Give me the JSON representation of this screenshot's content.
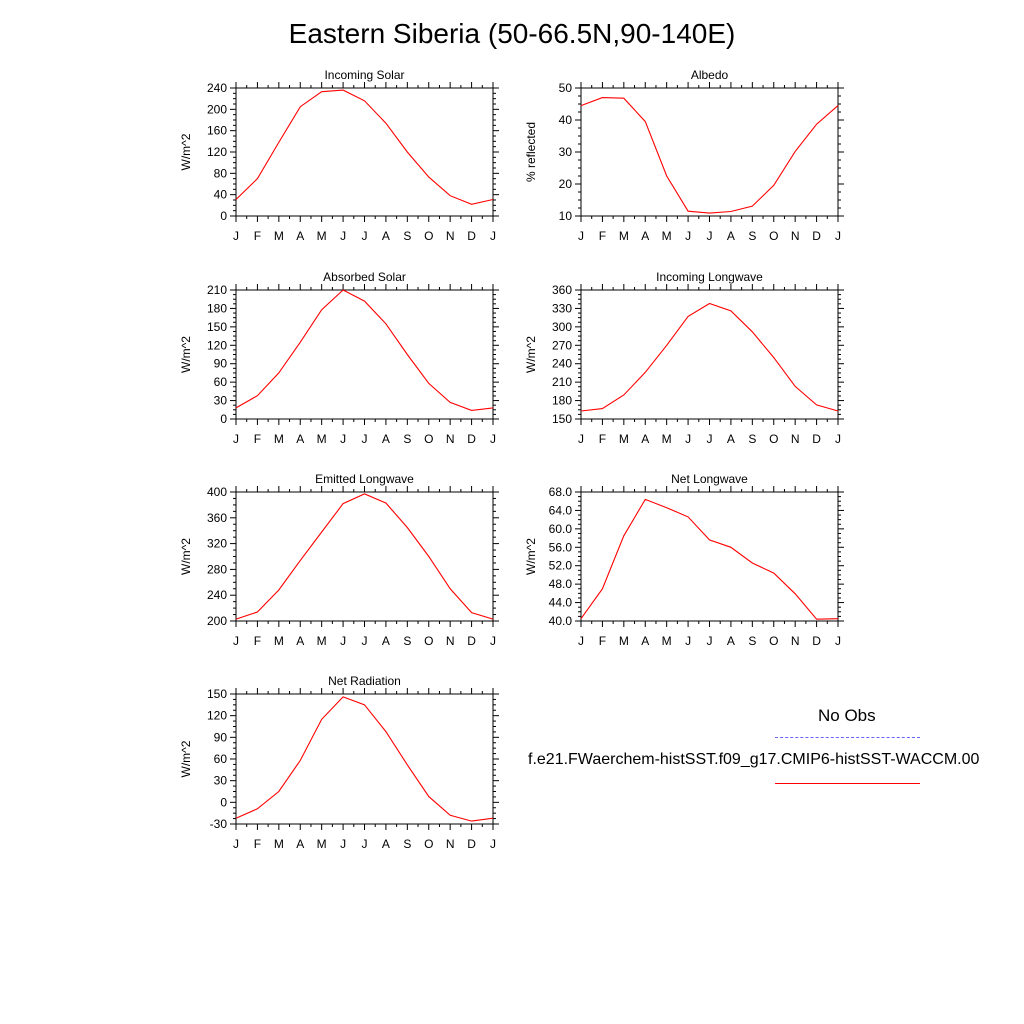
{
  "title": "Eastern Siberia (50-66.5N,90-140E)",
  "colors": {
    "model": "#ff0000",
    "obs": "#6666ff",
    "axes": "#000000"
  },
  "legend": {
    "obs_label": "No Obs",
    "case_label": "f.e21.FWaerchem-histSST.f09_g17.CMIP6-histSST-WACCM.00"
  },
  "chart_data": [
    {
      "id": "incoming-solar",
      "type": "line",
      "title": "Incoming Solar",
      "ylabel": "W/m^2",
      "categories": [
        "J",
        "F",
        "M",
        "A",
        "M",
        "J",
        "J",
        "A",
        "S",
        "O",
        "N",
        "D",
        "J"
      ],
      "ylim": [
        0,
        240
      ],
      "yticks": [
        "0",
        "40",
        "80",
        "120",
        "160",
        "200",
        "240"
      ],
      "series": [
        {
          "values": [
            31,
            70,
            138,
            205,
            233,
            236,
            216,
            174,
            120,
            73,
            38,
            22,
            31
          ]
        }
      ]
    },
    {
      "id": "albedo",
      "type": "line",
      "title": "Albedo",
      "ylabel": "% reflected",
      "categories": [
        "J",
        "F",
        "M",
        "A",
        "M",
        "J",
        "J",
        "A",
        "S",
        "O",
        "N",
        "D",
        "J"
      ],
      "ylim": [
        10,
        50
      ],
      "yticks": [
        "10",
        "20",
        "30",
        "40",
        "50"
      ],
      "series": [
        {
          "values": [
            44.5,
            47.0,
            46.8,
            39.5,
            22.5,
            11.5,
            10.9,
            11.4,
            13.1,
            19.6,
            30.2,
            38.7,
            44.5
          ]
        }
      ]
    },
    {
      "id": "absorbed-solar",
      "type": "line",
      "title": "Absorbed Solar",
      "ylabel": "W/m^2",
      "categories": [
        "J",
        "F",
        "M",
        "A",
        "M",
        "J",
        "J",
        "A",
        "S",
        "O",
        "N",
        "D",
        "J"
      ],
      "ylim": [
        0,
        210
      ],
      "yticks": [
        "0",
        "30",
        "60",
        "90",
        "120",
        "150",
        "180",
        "210"
      ],
      "series": [
        {
          "values": [
            18,
            38,
            75,
            125,
            178,
            210,
            192,
            155,
            105,
            58,
            27,
            14,
            18
          ]
        }
      ]
    },
    {
      "id": "incoming-longwave",
      "type": "line",
      "title": "Incoming Longwave",
      "ylabel": "W/m^2",
      "categories": [
        "J",
        "F",
        "M",
        "A",
        "M",
        "J",
        "J",
        "A",
        "S",
        "O",
        "N",
        "D",
        "J"
      ],
      "ylim": [
        150,
        360
      ],
      "yticks": [
        "150",
        "180",
        "210",
        "240",
        "270",
        "300",
        "330",
        "360"
      ],
      "series": [
        {
          "values": [
            163,
            167,
            189,
            226,
            270,
            317,
            338,
            326,
            292,
            250,
            203,
            173,
            163
          ]
        }
      ]
    },
    {
      "id": "emitted-longwave",
      "type": "line",
      "title": "Emitted Longwave",
      "ylabel": "W/m^2",
      "categories": [
        "J",
        "F",
        "M",
        "A",
        "M",
        "J",
        "J",
        "A",
        "S",
        "O",
        "N",
        "D",
        "J"
      ],
      "ylim": [
        200,
        400
      ],
      "yticks": [
        "200",
        "240",
        "280",
        "320",
        "360",
        "400"
      ],
      "series": [
        {
          "values": [
            203,
            214,
            248,
            294,
            338,
            382,
            397,
            383,
            345,
            300,
            250,
            213,
            203
          ]
        }
      ]
    },
    {
      "id": "net-longwave",
      "type": "line",
      "title": "Net Longwave",
      "ylabel": "W/m^2",
      "categories": [
        "J",
        "F",
        "M",
        "A",
        "M",
        "J",
        "J",
        "A",
        "S",
        "O",
        "N",
        "D",
        "J"
      ],
      "ylim": [
        40,
        68
      ],
      "yticks": [
        "40.0",
        "44.0",
        "48.0",
        "52.0",
        "56.0",
        "60.0",
        "64.0",
        "68.0"
      ],
      "series": [
        {
          "values": [
            40.5,
            47.0,
            58.5,
            66.4,
            64.6,
            62.6,
            57.6,
            56.0,
            52.6,
            50.4,
            45.9,
            40.4,
            40.5
          ]
        }
      ]
    },
    {
      "id": "net-radiation",
      "type": "line",
      "title": "Net Radiation",
      "ylabel": "W/m^2",
      "categories": [
        "J",
        "F",
        "M",
        "A",
        "M",
        "J",
        "J",
        "A",
        "S",
        "O",
        "N",
        "D",
        "J"
      ],
      "ylim": [
        -30,
        150
      ],
      "yticks": [
        "-30",
        "0",
        "30",
        "60",
        "90",
        "120",
        "150"
      ],
      "series": [
        {
          "values": [
            -22,
            -9,
            15,
            58,
            115,
            146,
            135,
            98,
            52,
            8,
            -18,
            -26,
            -22
          ]
        }
      ]
    }
  ]
}
